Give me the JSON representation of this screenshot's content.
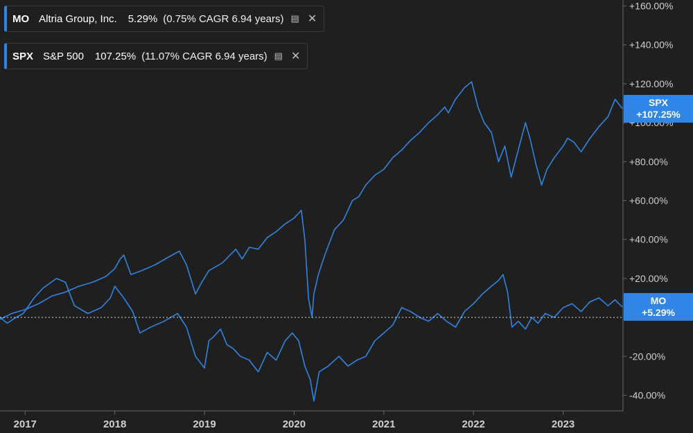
{
  "legend": [
    {
      "symbol": "MO",
      "name": "Altria Group, Inc.",
      "change": "5.29%",
      "cagr": "(0.75% CAGR 6.94 years)",
      "icon": "stack-icon",
      "close_icon": "close-icon"
    },
    {
      "symbol": "SPX",
      "name": "S&P 500",
      "change": "107.25%",
      "cagr": "(11.07% CAGR 6.94 years)",
      "icon": "stack-icon",
      "close_icon": "close-icon"
    }
  ],
  "end_labels": {
    "spx": {
      "symbol": "SPX",
      "value": "+107.25%"
    },
    "mo": {
      "symbol": "MO",
      "value": "+5.29%"
    }
  },
  "colors": {
    "background": "#1f1f1f",
    "series": "#2f86e6",
    "axis_text": "#d0d0d0",
    "zero_line": "#ffffff"
  },
  "chart_data": {
    "type": "line",
    "y_format": "percent",
    "ylim": [
      -48,
      163
    ],
    "xlim": [
      2016.72,
      2023.66
    ],
    "y_ticks": [
      "+160.00%",
      "+140.00%",
      "+120.00%",
      "+100.00%",
      "+80.00%",
      "+60.00%",
      "+40.00%",
      "+20.00%",
      "-20.00%",
      "-40.00%"
    ],
    "y_tick_values": [
      160,
      140,
      120,
      100,
      80,
      60,
      40,
      20,
      -20,
      -40
    ],
    "x_ticks": [
      "2017",
      "2018",
      "2019",
      "2020",
      "2021",
      "2022",
      "2023"
    ],
    "x_tick_values": [
      2017,
      2018,
      2019,
      2020,
      2021,
      2022,
      2023
    ],
    "zero_line": 0,
    "grid": false,
    "series": [
      {
        "name": "SPX",
        "x": [
          2016.72,
          2016.85,
          2017.0,
          2017.15,
          2017.3,
          2017.45,
          2017.6,
          2017.75,
          2017.9,
          2018.0,
          2018.06,
          2018.1,
          2018.18,
          2018.3,
          2018.45,
          2018.6,
          2018.72,
          2018.8,
          2018.9,
          2018.97,
          2019.05,
          2019.2,
          2019.35,
          2019.42,
          2019.5,
          2019.6,
          2019.7,
          2019.8,
          2019.9,
          2020.0,
          2020.08,
          2020.12,
          2020.16,
          2020.2,
          2020.22,
          2020.27,
          2020.35,
          2020.45,
          2020.55,
          2020.65,
          2020.72,
          2020.8,
          2020.9,
          2021.0,
          2021.1,
          2021.2,
          2021.3,
          2021.4,
          2021.5,
          2021.6,
          2021.68,
          2021.72,
          2021.8,
          2021.9,
          2021.98,
          2022.05,
          2022.12,
          2022.2,
          2022.28,
          2022.35,
          2022.42,
          2022.5,
          2022.58,
          2022.63,
          2022.7,
          2022.76,
          2022.82,
          2022.9,
          2023.0,
          2023.05,
          2023.12,
          2023.2,
          2023.3,
          2023.4,
          2023.5,
          2023.58,
          2023.66
        ],
        "values": [
          -1,
          2,
          4,
          7,
          11,
          13,
          16,
          18,
          21,
          25,
          30,
          32,
          22,
          24,
          27,
          31,
          34,
          27,
          12,
          18,
          24,
          28,
          35,
          30,
          36,
          35,
          41,
          44,
          48,
          51,
          55,
          40,
          10,
          0,
          12,
          22,
          33,
          45,
          50,
          60,
          62,
          68,
          73,
          76,
          82,
          86,
          91,
          95,
          100,
          104,
          108,
          105,
          112,
          118,
          121,
          108,
          100,
          95,
          80,
          88,
          72,
          86,
          100,
          92,
          78,
          68,
          76,
          82,
          88,
          92,
          90,
          85,
          92,
          98,
          103,
          112,
          107.25
        ]
      },
      {
        "name": "MO",
        "x": [
          2016.72,
          2016.8,
          2016.9,
          2016.98,
          2017.1,
          2017.2,
          2017.35,
          2017.45,
          2017.5,
          2017.55,
          2017.7,
          2017.85,
          2017.95,
          2018.0,
          2018.1,
          2018.2,
          2018.28,
          2018.4,
          2018.55,
          2018.7,
          2018.8,
          2018.9,
          2019.0,
          2019.05,
          2019.1,
          2019.18,
          2019.25,
          2019.32,
          2019.4,
          2019.5,
          2019.6,
          2019.7,
          2019.8,
          2019.9,
          2019.98,
          2020.05,
          2020.12,
          2020.18,
          2020.22,
          2020.28,
          2020.38,
          2020.5,
          2020.6,
          2020.7,
          2020.8,
          2020.9,
          2021.0,
          2021.1,
          2021.2,
          2021.3,
          2021.4,
          2021.5,
          2021.6,
          2021.7,
          2021.8,
          2021.9,
          2022.0,
          2022.1,
          2022.2,
          2022.28,
          2022.33,
          2022.38,
          2022.43,
          2022.5,
          2022.58,
          2022.65,
          2022.72,
          2022.8,
          2022.9,
          2023.0,
          2023.1,
          2023.2,
          2023.3,
          2023.4,
          2023.5,
          2023.58,
          2023.66
        ],
        "values": [
          0,
          -3,
          0,
          2,
          10,
          15,
          20,
          18,
          12,
          6,
          2,
          5,
          10,
          16,
          10,
          3,
          -8,
          -5,
          -2,
          2,
          -5,
          -20,
          -26,
          -12,
          -10,
          -6,
          -14,
          -16,
          -20,
          -22,
          -28,
          -18,
          -22,
          -12,
          -8,
          -12,
          -25,
          -32,
          -43,
          -28,
          -25,
          -20,
          -25,
          -22,
          -20,
          -12,
          -8,
          -4,
          5,
          3,
          0,
          -2,
          2,
          -2,
          -5,
          3,
          7,
          12,
          16,
          19,
          22,
          13,
          -5,
          -2,
          -6,
          0,
          -3,
          2,
          0,
          5,
          7,
          3,
          8,
          10,
          6,
          9,
          5.29
        ]
      }
    ]
  }
}
